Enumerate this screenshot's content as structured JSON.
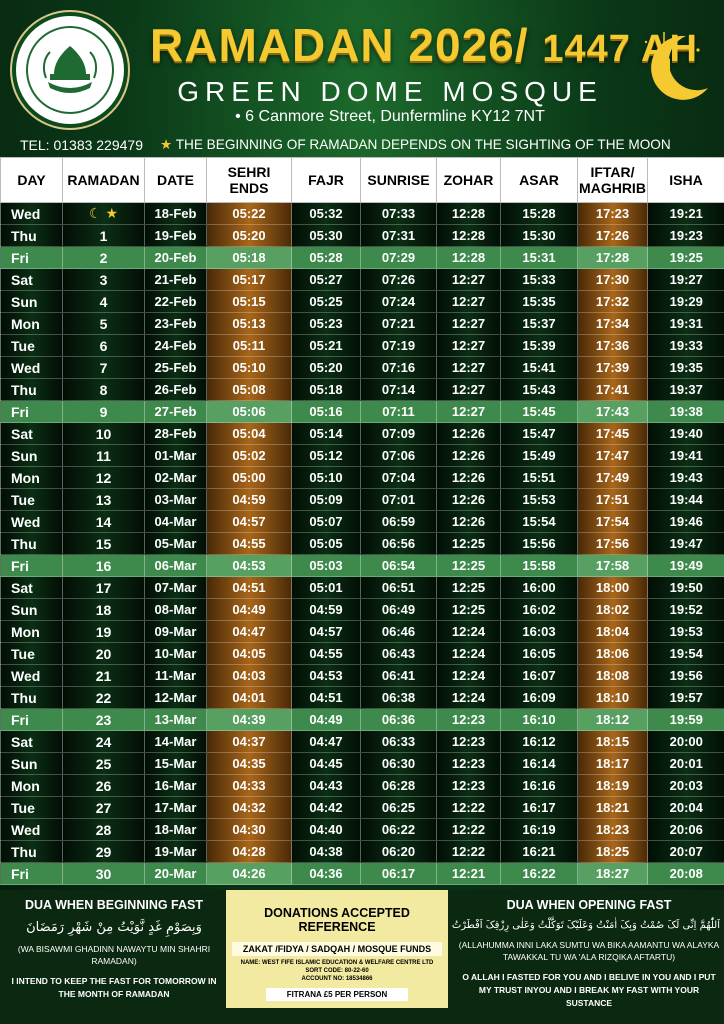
{
  "header": {
    "title": "RAMADAN 2026/",
    "title_ah": "1447 AH",
    "mosque": "GREEN DOME MOSQUE",
    "address": "6 Canmore Street, Dunfermline KY12 7NT",
    "tel": "TEL: 01383 229479",
    "notice": "THE BEGINNING OF RAMADAN DEPENDS ON THE SIGHTING OF THE MOON"
  },
  "logo": {
    "icon": "mosque-logo-icon"
  },
  "columns": [
    "DAY",
    "RAMADAN",
    "DATE",
    "SEHRI ENDS",
    "FAJR",
    "SUNRISE",
    "ZOHAR",
    "ASAR",
    "IFTAR/ MAGHRIB",
    "ISHA"
  ],
  "rows": [
    {
      "day": "Wed",
      "ramadan": "☾ ★",
      "date": "18-Feb",
      "sehri": "05:22",
      "fajr": "05:32",
      "sunrise": "07:33",
      "zohar": "12:28",
      "asar": "15:28",
      "iftar": "17:23",
      "isha": "19:21"
    },
    {
      "day": "Thu",
      "ramadan": "1",
      "date": "19-Feb",
      "sehri": "05:20",
      "fajr": "05:30",
      "sunrise": "07:31",
      "zohar": "12:28",
      "asar": "15:30",
      "iftar": "17:26",
      "isha": "19:23"
    },
    {
      "day": "Fri",
      "ramadan": "2",
      "date": "20-Feb",
      "sehri": "05:18",
      "fajr": "05:28",
      "sunrise": "07:29",
      "zohar": "12:28",
      "asar": "15:31",
      "iftar": "17:28",
      "isha": "19:25"
    },
    {
      "day": "Sat",
      "ramadan": "3",
      "date": "21-Feb",
      "sehri": "05:17",
      "fajr": "05:27",
      "sunrise": "07:26",
      "zohar": "12:27",
      "asar": "15:33",
      "iftar": "17:30",
      "isha": "19:27"
    },
    {
      "day": "Sun",
      "ramadan": "4",
      "date": "22-Feb",
      "sehri": "05:15",
      "fajr": "05:25",
      "sunrise": "07:24",
      "zohar": "12:27",
      "asar": "15:35",
      "iftar": "17:32",
      "isha": "19:29"
    },
    {
      "day": "Mon",
      "ramadan": "5",
      "date": "23-Feb",
      "sehri": "05:13",
      "fajr": "05:23",
      "sunrise": "07:21",
      "zohar": "12:27",
      "asar": "15:37",
      "iftar": "17:34",
      "isha": "19:31"
    },
    {
      "day": "Tue",
      "ramadan": "6",
      "date": "24-Feb",
      "sehri": "05:11",
      "fajr": "05:21",
      "sunrise": "07:19",
      "zohar": "12:27",
      "asar": "15:39",
      "iftar": "17:36",
      "isha": "19:33"
    },
    {
      "day": "Wed",
      "ramadan": "7",
      "date": "25-Feb",
      "sehri": "05:10",
      "fajr": "05:20",
      "sunrise": "07:16",
      "zohar": "12:27",
      "asar": "15:41",
      "iftar": "17:39",
      "isha": "19:35"
    },
    {
      "day": "Thu",
      "ramadan": "8",
      "date": "26-Feb",
      "sehri": "05:08",
      "fajr": "05:18",
      "sunrise": "07:14",
      "zohar": "12:27",
      "asar": "15:43",
      "iftar": "17:41",
      "isha": "19:37"
    },
    {
      "day": "Fri",
      "ramadan": "9",
      "date": "27-Feb",
      "sehri": "05:06",
      "fajr": "05:16",
      "sunrise": "07:11",
      "zohar": "12:27",
      "asar": "15:45",
      "iftar": "17:43",
      "isha": "19:38"
    },
    {
      "day": "Sat",
      "ramadan": "10",
      "date": "28-Feb",
      "sehri": "05:04",
      "fajr": "05:14",
      "sunrise": "07:09",
      "zohar": "12:26",
      "asar": "15:47",
      "iftar": "17:45",
      "isha": "19:40"
    },
    {
      "day": "Sun",
      "ramadan": "11",
      "date": "01-Mar",
      "sehri": "05:02",
      "fajr": "05:12",
      "sunrise": "07:06",
      "zohar": "12:26",
      "asar": "15:49",
      "iftar": "17:47",
      "isha": "19:41"
    },
    {
      "day": "Mon",
      "ramadan": "12",
      "date": "02-Mar",
      "sehri": "05:00",
      "fajr": "05:10",
      "sunrise": "07:04",
      "zohar": "12:26",
      "asar": "15:51",
      "iftar": "17:49",
      "isha": "19:43"
    },
    {
      "day": "Tue",
      "ramadan": "13",
      "date": "03-Mar",
      "sehri": "04:59",
      "fajr": "05:09",
      "sunrise": "07:01",
      "zohar": "12:26",
      "asar": "15:53",
      "iftar": "17:51",
      "isha": "19:44"
    },
    {
      "day": "Wed",
      "ramadan": "14",
      "date": "04-Mar",
      "sehri": "04:57",
      "fajr": "05:07",
      "sunrise": "06:59",
      "zohar": "12:26",
      "asar": "15:54",
      "iftar": "17:54",
      "isha": "19:46"
    },
    {
      "day": "Thu",
      "ramadan": "15",
      "date": "05-Mar",
      "sehri": "04:55",
      "fajr": "05:05",
      "sunrise": "06:56",
      "zohar": "12:25",
      "asar": "15:56",
      "iftar": "17:56",
      "isha": "19:47"
    },
    {
      "day": "Fri",
      "ramadan": "16",
      "date": "06-Mar",
      "sehri": "04:53",
      "fajr": "05:03",
      "sunrise": "06:54",
      "zohar": "12:25",
      "asar": "15:58",
      "iftar": "17:58",
      "isha": "19:49"
    },
    {
      "day": "Sat",
      "ramadan": "17",
      "date": "07-Mar",
      "sehri": "04:51",
      "fajr": "05:01",
      "sunrise": "06:51",
      "zohar": "12:25",
      "asar": "16:00",
      "iftar": "18:00",
      "isha": "19:50"
    },
    {
      "day": "Sun",
      "ramadan": "18",
      "date": "08-Mar",
      "sehri": "04:49",
      "fajr": "04:59",
      "sunrise": "06:49",
      "zohar": "12:25",
      "asar": "16:02",
      "iftar": "18:02",
      "isha": "19:52"
    },
    {
      "day": "Mon",
      "ramadan": "19",
      "date": "09-Mar",
      "sehri": "04:47",
      "fajr": "04:57",
      "sunrise": "06:46",
      "zohar": "12:24",
      "asar": "16:03",
      "iftar": "18:04",
      "isha": "19:53"
    },
    {
      "day": "Tue",
      "ramadan": "20",
      "date": "10-Mar",
      "sehri": "04:05",
      "fajr": "04:55",
      "sunrise": "06:43",
      "zohar": "12:24",
      "asar": "16:05",
      "iftar": "18:06",
      "isha": "19:54"
    },
    {
      "day": "Wed",
      "ramadan": "21",
      "date": "11-Mar",
      "sehri": "04:03",
      "fajr": "04:53",
      "sunrise": "06:41",
      "zohar": "12:24",
      "asar": "16:07",
      "iftar": "18:08",
      "isha": "19:56"
    },
    {
      "day": "Thu",
      "ramadan": "22",
      "date": "12-Mar",
      "sehri": "04:01",
      "fajr": "04:51",
      "sunrise": "06:38",
      "zohar": "12:24",
      "asar": "16:09",
      "iftar": "18:10",
      "isha": "19:57"
    },
    {
      "day": "Fri",
      "ramadan": "23",
      "date": "13-Mar",
      "sehri": "04:39",
      "fajr": "04:49",
      "sunrise": "06:36",
      "zohar": "12:23",
      "asar": "16:10",
      "iftar": "18:12",
      "isha": "19:59"
    },
    {
      "day": "Sat",
      "ramadan": "24",
      "date": "14-Mar",
      "sehri": "04:37",
      "fajr": "04:47",
      "sunrise": "06:33",
      "zohar": "12:23",
      "asar": "16:12",
      "iftar": "18:15",
      "isha": "20:00"
    },
    {
      "day": "Sun",
      "ramadan": "25",
      "date": "15-Mar",
      "sehri": "04:35",
      "fajr": "04:45",
      "sunrise": "06:30",
      "zohar": "12:23",
      "asar": "16:14",
      "iftar": "18:17",
      "isha": "20:01"
    },
    {
      "day": "Mon",
      "ramadan": "26",
      "date": "16-Mar",
      "sehri": "04:33",
      "fajr": "04:43",
      "sunrise": "06:28",
      "zohar": "12:23",
      "asar": "16:16",
      "iftar": "18:19",
      "isha": "20:03"
    },
    {
      "day": "Tue",
      "ramadan": "27",
      "date": "17-Mar",
      "sehri": "04:32",
      "fajr": "04:42",
      "sunrise": "06:25",
      "zohar": "12:22",
      "asar": "16:17",
      "iftar": "18:21",
      "isha": "20:04"
    },
    {
      "day": "Wed",
      "ramadan": "28",
      "date": "18-Mar",
      "sehri": "04:30",
      "fajr": "04:40",
      "sunrise": "06:22",
      "zohar": "12:22",
      "asar": "16:19",
      "iftar": "18:23",
      "isha": "20:06"
    },
    {
      "day": "Thu",
      "ramadan": "29",
      "date": "19-Mar",
      "sehri": "04:28",
      "fajr": "04:38",
      "sunrise": "06:20",
      "zohar": "12:22",
      "asar": "16:21",
      "iftar": "18:25",
      "isha": "20:07"
    },
    {
      "day": "Fri",
      "ramadan": "30",
      "date": "20-Mar",
      "sehri": "04:26",
      "fajr": "04:36",
      "sunrise": "06:17",
      "zohar": "12:21",
      "asar": "16:22",
      "iftar": "18:27",
      "isha": "20:08"
    }
  ],
  "footer": {
    "dua_begin": {
      "title": "DUA WHEN BEGINNING FAST",
      "arabic": "وَبِصَوْمِ غَدٍ نَّوَيْتُ مِنْ شَهْرِ رَمَضَانَ",
      "transliteration": "(WA BISAWMI GHADINN NAWAYTU MIN SHAHRI RAMADAN)",
      "meaning": "I INTEND TO KEEP THE FAST FOR TOMORROW IN THE MONTH OF RAMADAN"
    },
    "donations": {
      "title": "DONATIONS ACCEPTED REFERENCE",
      "funds": "ZAKAT /FIDYA / SADQAH / MOSQUE FUNDS",
      "name": "NAME: WEST FIFE ISLAMIC EDUCATION & WELFARE CENTRE LTD",
      "sort_code": "SORT CODE: 80-22-60",
      "account": "ACCOUNT NO: 18534866",
      "fitrana": "FITRANA £5 PER PERSON"
    },
    "dua_open": {
      "title": "DUA WHEN OPENING FAST",
      "arabic": "اَللّٰهُمَّ اِنِّی لَکَ صُمْتُ وَبِکَ اٰمَنْتُ وَعَلَیْکَ تَوَکَّلْتُ وَعَلٰی رِزْقِکَ اَفْطَرْتُ",
      "transliteration": "(ALLAHUMMA INNI LAKA SUMTU WA BIKA AAMANTU WA ALAYKA TAWAKKAL TU WA 'ALA RIZQIKA AFTARTU)",
      "meaning": "O ALLAH I FASTED FOR YOU AND I BELIVE IN YOU AND I PUT MY TRUST INYOU AND I BREAK MY FAST WITH YOUR SUSTANCE"
    }
  },
  "colors": {
    "gold": "#f5c930",
    "friday_row": "#3e8a4c",
    "sehri_iftar_column": "#a8661a",
    "donation_box": "#f2eaa0"
  }
}
